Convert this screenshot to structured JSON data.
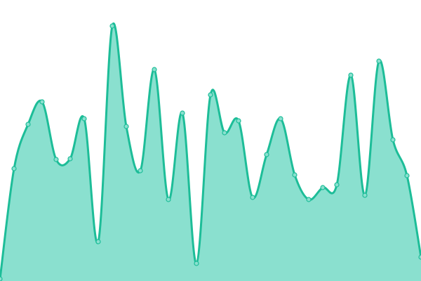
{
  "chart_data": {
    "type": "area",
    "title": "",
    "xlabel": "",
    "ylabel": "",
    "axes_visible": false,
    "grid": false,
    "legend": "none",
    "curve": "smooth",
    "markers": true,
    "ylim": [
      0,
      400
    ],
    "x": [
      0,
      1,
      2,
      3,
      4,
      5,
      6,
      7,
      8,
      9,
      10,
      11,
      12,
      13,
      14,
      15,
      16,
      17,
      18,
      19,
      20,
      21,
      22,
      23,
      24,
      25,
      26,
      27,
      28,
      29,
      30
    ],
    "values": [
      3,
      160,
      223,
      255,
      173,
      174,
      231,
      56,
      363,
      220,
      157,
      301,
      116,
      239,
      25,
      265,
      211,
      228,
      119,
      180,
      231,
      151,
      116,
      133,
      137,
      293,
      122,
      313,
      201,
      150,
      34
    ],
    "colors": {
      "line": "#1dbd98",
      "fill": "#8ae0cf",
      "marker_fill": "#8ae0cf",
      "marker_stroke": "#1dbd98"
    }
  }
}
